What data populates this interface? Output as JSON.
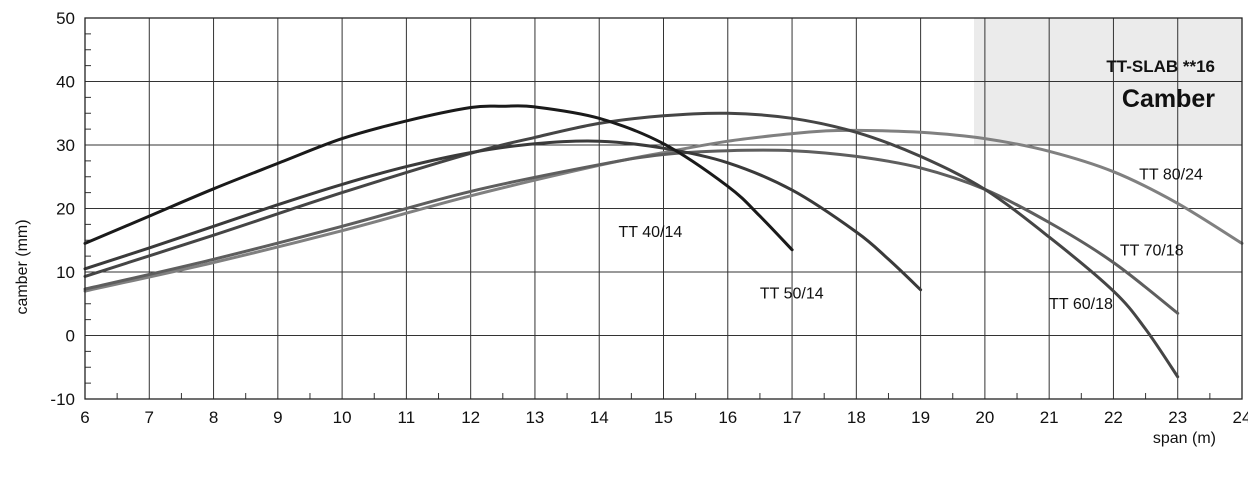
{
  "chart_data": {
    "type": "line",
    "title": "TT-SLAB **16",
    "subtitle": "Camber",
    "xlabel": "span (m)",
    "ylabel": "camber (mm)",
    "xlim": [
      6,
      24
    ],
    "ylim": [
      -10,
      50
    ],
    "x_ticks": [
      6,
      7,
      8,
      9,
      10,
      11,
      12,
      13,
      14,
      15,
      16,
      17,
      18,
      19,
      20,
      21,
      22,
      23,
      24
    ],
    "y_ticks": [
      -10,
      0,
      10,
      20,
      30,
      40,
      50
    ],
    "grid": true,
    "series": [
      {
        "name": "TT 40/14",
        "color": "#1a1a1a",
        "x": [
          6,
          7,
          8,
          9,
          10,
          11,
          12,
          12.5,
          13,
          14,
          15,
          16,
          16.5,
          17
        ],
        "y": [
          14.5,
          18.8,
          23.1,
          27.1,
          31,
          33.8,
          35.9,
          36.1,
          36,
          34.2,
          30.2,
          23.5,
          18.8,
          13.5
        ]
      },
      {
        "name": "TT 50/14",
        "color": "#3a3a3a",
        "x": [
          6,
          7,
          8,
          9,
          10,
          11,
          12,
          13,
          14,
          15,
          16,
          17,
          18,
          18.5,
          19
        ],
        "y": [
          10.5,
          13.8,
          17.2,
          20.6,
          23.8,
          26.6,
          28.8,
          30.2,
          30.6,
          29.5,
          27.2,
          22.9,
          16.3,
          12,
          7.2
        ]
      },
      {
        "name": "TT 60/18",
        "color": "#454545",
        "x": [
          6,
          8,
          10,
          12,
          13,
          14,
          15,
          16,
          17,
          18,
          19,
          20,
          21,
          22,
          22.5,
          23
        ],
        "y": [
          9.3,
          15.8,
          22.5,
          28.7,
          31.2,
          33.4,
          34.6,
          35,
          34.2,
          32,
          28.2,
          23,
          15.5,
          7,
          1,
          -6.5
        ]
      },
      {
        "name": "TT 70/18",
        "color": "#5e5e5e",
        "x": [
          6,
          8,
          10,
          12,
          14,
          15,
          16,
          17,
          18,
          19,
          20,
          21,
          22,
          23
        ],
        "y": [
          7.3,
          12,
          17.2,
          22.7,
          26.9,
          28.5,
          29.1,
          29.1,
          28.2,
          26.4,
          23,
          17.8,
          11.5,
          3.5
        ]
      },
      {
        "name": "TT 80/24",
        "color": "#808080",
        "x": [
          6,
          8,
          10,
          12,
          14,
          15,
          16,
          17,
          17.5,
          18,
          19,
          20,
          21,
          22,
          23,
          24
        ],
        "y": [
          7,
          11.5,
          16.5,
          22,
          26.8,
          28.8,
          30.6,
          31.8,
          32.2,
          32.3,
          32,
          31,
          29,
          25.8,
          20.8,
          14.5
        ]
      }
    ],
    "series_label_positions": [
      {
        "name": "TT 40/14",
        "x": 14.3,
        "y": 15.5
      },
      {
        "name": "TT 50/14",
        "x": 16.5,
        "y": 5.8
      },
      {
        "name": "TT 60/18",
        "x": 21.0,
        "y": 4.2
      },
      {
        "name": "TT 70/18",
        "x": 22.1,
        "y": 12.6
      },
      {
        "name": "TT 80/24",
        "x": 22.4,
        "y": 24.6
      }
    ]
  }
}
